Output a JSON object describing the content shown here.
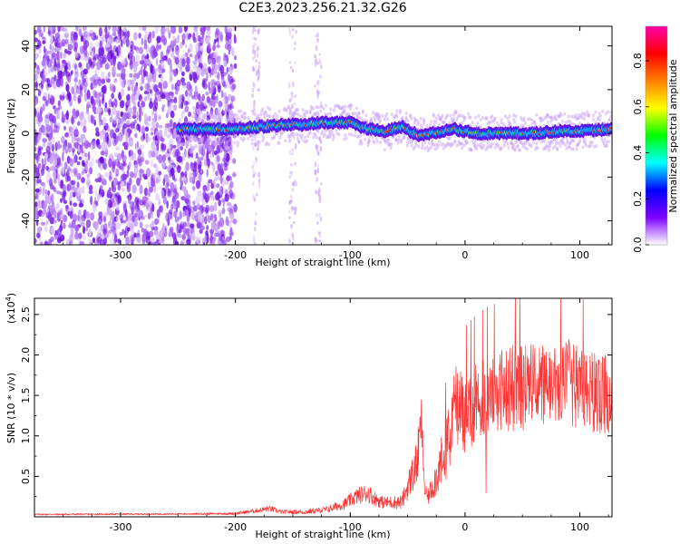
{
  "figure_title": "C2E3.2023.256.21.32.G26",
  "colors": {
    "snr_line": "#ff3333",
    "spectrum_purple": "#7a1fe6",
    "spectrum_core": "#ff2a2a"
  },
  "chart_data": [
    {
      "type": "heatmap",
      "title": "C2E3.2023.256.21.32.G26",
      "xlabel": "Height of straight line (km)",
      "ylabel": "Frequency (Hz)",
      "xlim": [
        -375,
        128
      ],
      "ylim": [
        -51,
        49
      ],
      "x_ticks": [
        -300,
        -200,
        -100,
        0,
        100
      ],
      "y_ticks": [
        -40,
        -20,
        0,
        20,
        40
      ],
      "x_tick_labels": [
        "-300",
        "-200",
        "-100",
        "0",
        "100"
      ],
      "y_tick_labels": [
        "-40",
        "-20",
        "0",
        "20",
        "40"
      ],
      "colorbar": {
        "label": "Normalized spectral amplitude",
        "range": [
          0.0,
          0.95
        ],
        "ticks": [
          0.0,
          0.2,
          0.4,
          0.6,
          0.8
        ],
        "tick_labels": [
          "0.0",
          "0.2",
          "0.4",
          "0.6",
          "0.8"
        ],
        "colormap": [
          "#ffffff",
          "#7f00ff",
          "#0000ff",
          "#00ffff",
          "#00ff00",
          "#ffff00",
          "#ff8000",
          "#ff0000",
          "#ff00aa"
        ]
      },
      "noise_region_x": [
        -375,
        -200
      ],
      "sparse_streak_x": [
        -182,
        -150,
        -128
      ],
      "signal_start_x": -250,
      "signal_track": {
        "x": [
          -250,
          -210,
          -200,
          -180,
          -160,
          -140,
          -120,
          -100,
          -85,
          -70,
          -62,
          -55,
          -48,
          -40,
          -30,
          -20,
          -10,
          0,
          10,
          20,
          40,
          60,
          80,
          100,
          128
        ],
        "freq": [
          2,
          2,
          2,
          3,
          4,
          4,
          5,
          5,
          2,
          1,
          2,
          3,
          1,
          -1,
          0,
          1,
          2,
          1,
          0,
          0,
          0,
          0,
          1,
          1,
          2
        ]
      }
    },
    {
      "type": "line",
      "xlabel": "Height of straight line (km)",
      "ylabel": "SNR (10 * v/v)",
      "y_multiplier_label": "(x10",
      "y_multiplier_exp": "4",
      "xlim": [
        -375,
        128
      ],
      "ylim": [
        0,
        27000
      ],
      "x_ticks": [
        -300,
        -200,
        -100,
        0,
        100
      ],
      "x_tick_labels": [
        "-300",
        "-200",
        "-100",
        "0",
        "100"
      ],
      "y_ticks": [
        5000,
        10000,
        15000,
        20000,
        25000
      ],
      "y_tick_labels": [
        "0.5",
        "1.0",
        "1.5",
        "2.0",
        "2.5"
      ],
      "series": [
        {
          "name": "SNR",
          "color": "#ff3333",
          "envelope": {
            "x": [
              -375,
              -250,
              -200,
              -180,
              -170,
              -160,
              -140,
              -120,
              -105,
              -95,
              -85,
              -78,
              -72,
              -65,
              -55,
              -48,
              -42,
              -38,
              -35,
              -32,
              -25,
              -15,
              -8,
              0,
              10,
              20,
              30,
              40,
              50,
              60,
              70,
              80,
              90,
              100,
              110,
              120,
              128
            ],
            "mean": [
              300,
              350,
              400,
              800,
              1000,
              600,
              600,
              900,
              1600,
              2500,
              3000,
              2200,
              1800,
              1800,
              1800,
              4500,
              6500,
              12000,
              3000,
              2500,
              5000,
              9000,
              14000,
              12500,
              14000,
              15000,
              15500,
              16000,
              16000,
              16500,
              16000,
              16000,
              16500,
              16000,
              15500,
              15000,
              15500
            ],
            "spread": [
              100,
              100,
              150,
              300,
              400,
              250,
              300,
              400,
              700,
              1000,
              1200,
              900,
              800,
              800,
              900,
              2000,
              3000,
              3000,
              1000,
              1000,
              2500,
              4000,
              5000,
              5000,
              5000,
              5000,
              5000,
              5500,
              5500,
              5000,
              5000,
              5000,
              5500,
              5000,
              5000,
              5000,
              5000
            ]
          }
        }
      ]
    }
  ]
}
